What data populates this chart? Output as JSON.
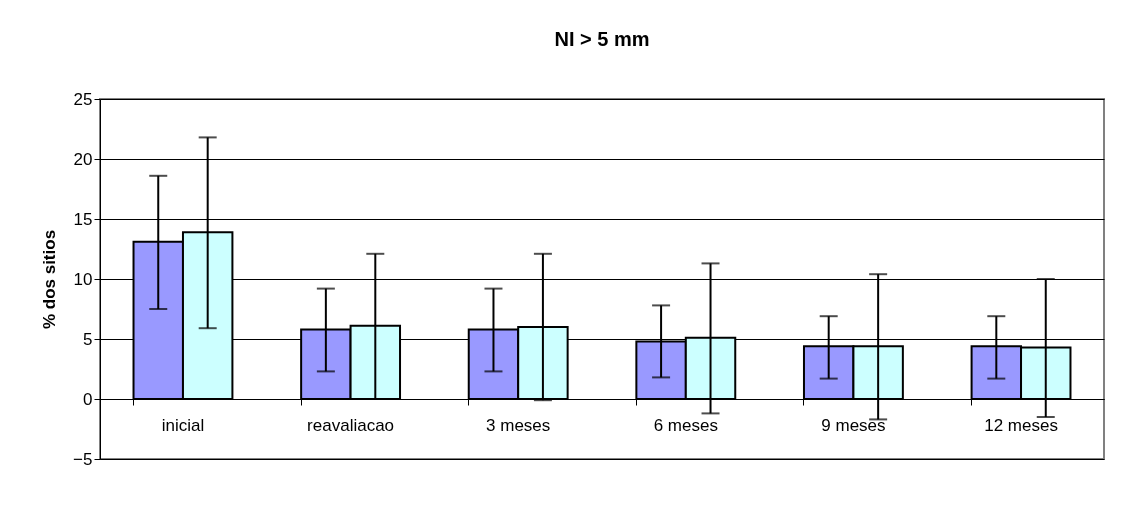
{
  "chart_data": {
    "type": "bar",
    "title": "NI > 5 mm",
    "ylabel": "% dos sitios",
    "categories": [
      "inicial",
      "reavaliacao",
      "3 meses",
      "6 meses",
      "9 meses",
      "12 meses"
    ],
    "series": [
      {
        "color": "#9999ff",
        "values": [
          13.1,
          5.8,
          5.8,
          4.8,
          4.4,
          4.4
        ],
        "errors": [
          [
            7.5,
            18.6
          ],
          [
            2.3,
            9.2
          ],
          [
            2.3,
            9.2
          ],
          [
            1.8,
            7.8
          ],
          [
            1.7,
            6.9
          ],
          [
            1.7,
            6.9
          ]
        ]
      },
      {
        "color": "#ccffff",
        "values": [
          13.9,
          6.1,
          6.0,
          5.1,
          4.4,
          4.3
        ],
        "errors": [
          [
            5.9,
            21.8
          ],
          [
            0.0,
            12.1
          ],
          [
            -0.1,
            12.1
          ],
          [
            -1.2,
            11.3
          ],
          [
            -1.7,
            10.4
          ],
          [
            -1.5,
            10.0
          ]
        ]
      }
    ],
    "ylim": [
      -5,
      25
    ],
    "yticks": [
      -5,
      0,
      5,
      10,
      15,
      20,
      25
    ],
    "grid": "y"
  }
}
